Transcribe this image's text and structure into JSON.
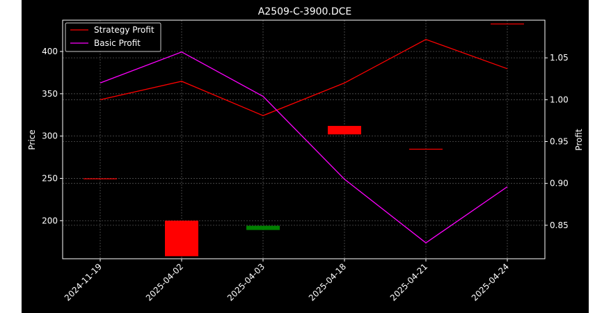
{
  "chart_data": {
    "type": "candlestick+line",
    "title": "A2509-C-3900.DCE",
    "ylabel_left": "Price",
    "ylabel_right": "Profit",
    "categories": [
      "2024-11-19",
      "2025-04-02",
      "2025-04-03",
      "2025-04-18",
      "2025-04-21",
      "2025-04-24"
    ],
    "ylim_left": [
      155,
      437
    ],
    "yticks_left": [
      200,
      250,
      300,
      350,
      400
    ],
    "ylim_right": [
      0.81,
      1.095
    ],
    "yticks_right": [
      0.85,
      0.9,
      0.95,
      1.0,
      1.05
    ],
    "grid": true,
    "legend_position": "top-left",
    "candles": [
      {
        "date": "2024-11-19",
        "open": 250,
        "close": 250,
        "color": "#ff0000"
      },
      {
        "date": "2025-04-02",
        "open": 200,
        "close": 158,
        "color": "#ff0000"
      },
      {
        "date": "2025-04-03",
        "open": 194,
        "close": 189,
        "color": "#008000"
      },
      {
        "date": "2025-04-18",
        "open": 312,
        "close": 302,
        "color": "#ff0000"
      },
      {
        "date": "2025-04-21",
        "open": 285,
        "close": 285,
        "color": "#ff0000"
      },
      {
        "date": "2025-04-24",
        "open": 433,
        "close": 433,
        "color": "#ff0000"
      }
    ],
    "series": [
      {
        "name": "Strategy Profit",
        "axis": "right",
        "color": "#ff0000",
        "values": [
          1.0,
          1.022,
          0.981,
          1.02,
          1.072,
          1.037
        ]
      },
      {
        "name": "Basic Profit",
        "axis": "right",
        "color": "#ff00ff",
        "values": [
          1.02,
          1.057,
          1.004,
          0.905,
          0.829,
          0.896
        ]
      }
    ]
  }
}
